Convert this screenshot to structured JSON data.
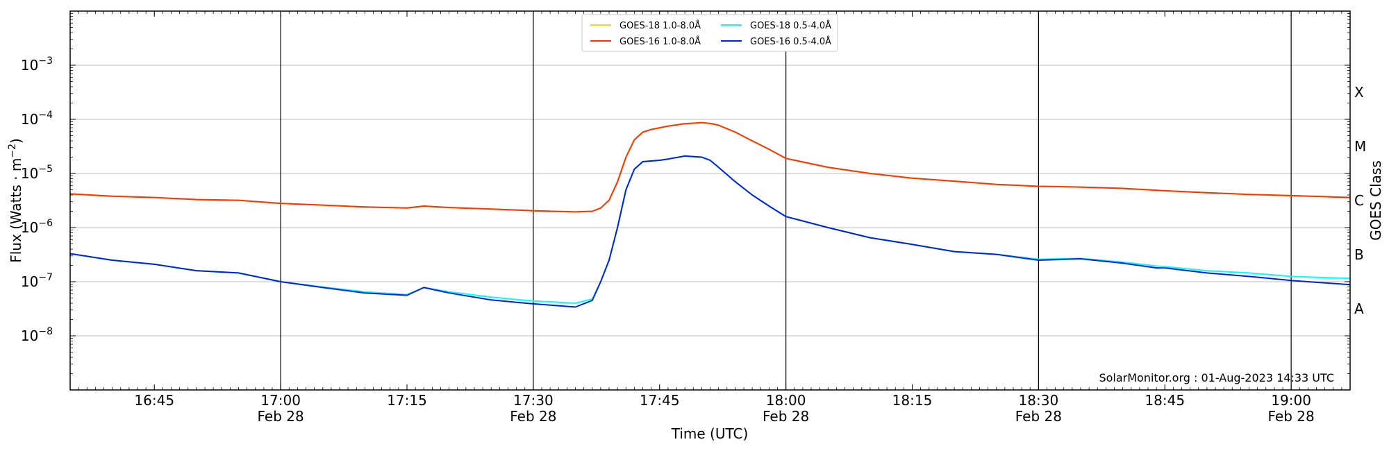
{
  "chart_data": {
    "type": "line",
    "xlabel": "Time (UTC)",
    "ylabel": "Flux (Watts · m⁻²)",
    "right_axis_label": "GOES Class",
    "credit": "SolarMonitor.org : 01-Aug-2023 14:33 UTC",
    "xlim": [
      "16:35",
      "19:07"
    ],
    "ylim": [
      1e-09,
      0.01
    ],
    "y_scale": "log",
    "grid": "horizontal at decades, vertical at half-hours",
    "legend_placement": "top-center",
    "x_ticks": [
      {
        "time": "16:45",
        "label": "16:45",
        "date": ""
      },
      {
        "time": "17:00",
        "label": "17:00",
        "date": "Feb 28"
      },
      {
        "time": "17:15",
        "label": "17:15",
        "date": ""
      },
      {
        "time": "17:30",
        "label": "17:30",
        "date": "Feb 28"
      },
      {
        "time": "17:45",
        "label": "17:45",
        "date": ""
      },
      {
        "time": "18:00",
        "label": "18:00",
        "date": "Feb 28"
      },
      {
        "time": "18:15",
        "label": "18:15",
        "date": ""
      },
      {
        "time": "18:30",
        "label": "18:30",
        "date": "Feb 28"
      },
      {
        "time": "18:45",
        "label": "18:45",
        "date": ""
      },
      {
        "time": "19:00",
        "label": "19:00",
        "date": "Feb 28"
      }
    ],
    "y_ticks": [
      {
        "exp": -3,
        "label": "10",
        "sup": "−3"
      },
      {
        "exp": -4,
        "label": "10",
        "sup": "−4"
      },
      {
        "exp": -5,
        "label": "10",
        "sup": "−5"
      },
      {
        "exp": -6,
        "label": "10",
        "sup": "−6"
      },
      {
        "exp": -7,
        "label": "10",
        "sup": "−7"
      },
      {
        "exp": -8,
        "label": "10",
        "sup": "−8"
      }
    ],
    "goes_classes": [
      {
        "label": "X",
        "flux": 0.0001
      },
      {
        "label": "M",
        "flux": 1e-05
      },
      {
        "label": "C",
        "flux": 1e-06
      },
      {
        "label": "B",
        "flux": 1e-07
      },
      {
        "label": "A",
        "flux": 1e-08
      }
    ],
    "series": [
      {
        "name": "GOES-18 1.0-8.0Å",
        "color": "#ffd700",
        "x": [
          "16:35",
          "16:40",
          "16:45",
          "16:50",
          "16:55",
          "17:00",
          "17:05",
          "17:10",
          "17:15",
          "17:17",
          "17:20",
          "17:25",
          "17:30",
          "17:35",
          "17:37",
          "17:38",
          "17:39",
          "17:40",
          "17:41",
          "17:42",
          "17:43",
          "17:44",
          "17:45",
          "17:46",
          "17:48",
          "17:50",
          "17:51",
          "17:52",
          "17:54",
          "17:56",
          "17:58",
          "18:00",
          "18:05",
          "18:10",
          "18:15",
          "18:20",
          "18:25",
          "18:30",
          "18:35",
          "18:40",
          "18:44",
          "18:45",
          "18:50",
          "18:55",
          "19:00",
          "19:07"
        ],
        "y": [
          4.2e-06,
          3.8e-06,
          3.6e-06,
          3.3e-06,
          3.2e-06,
          2.8e-06,
          2.6e-06,
          2.4e-06,
          2.3e-06,
          2.5e-06,
          2.35e-06,
          2.2e-06,
          2.05e-06,
          1.95e-06,
          2e-06,
          2.3e-06,
          3.2e-06,
          7e-06,
          2e-05,
          4.2e-05,
          5.8e-05,
          6.5e-05,
          7e-05,
          7.5e-05,
          8.3e-05,
          8.7e-05,
          8.4e-05,
          7.8e-05,
          5.8e-05,
          4e-05,
          2.8e-05,
          1.9e-05,
          1.3e-05,
          1e-05,
          8.2e-06,
          7.2e-06,
          6.3e-06,
          5.8e-06,
          5.6e-06,
          5.3e-06,
          4.9e-06,
          4.8e-06,
          4.4e-06,
          4.1e-06,
          3.9e-06,
          3.6e-06
        ]
      },
      {
        "name": "GOES-18 0.5-4.0Å",
        "color": "#00ffff",
        "x": [
          "16:35",
          "16:40",
          "16:45",
          "16:50",
          "16:55",
          "17:00",
          "17:05",
          "17:10",
          "17:15",
          "17:17",
          "17:20",
          "17:25",
          "17:30",
          "17:35",
          "17:37",
          "17:38",
          "17:39",
          "17:40",
          "17:41",
          "17:42",
          "17:43",
          "17:44",
          "17:45",
          "17:46",
          "17:48",
          "17:50",
          "17:51",
          "17:52",
          "17:54",
          "17:56",
          "17:58",
          "18:00",
          "18:05",
          "18:10",
          "18:15",
          "18:20",
          "18:25",
          "18:30",
          "18:35",
          "18:40",
          "18:44",
          "18:45",
          "18:50",
          "18:55",
          "19:00",
          "19:07"
        ],
        "y": [
          3.3e-07,
          2.5e-07,
          2.1e-07,
          1.6e-07,
          1.45e-07,
          1e-07,
          8e-08,
          6.5e-08,
          5.8e-08,
          7.8e-08,
          6.5e-08,
          5.2e-08,
          4.4e-08,
          4e-08,
          4.8e-08,
          1e-07,
          2.5e-07,
          1e-06,
          5e-06,
          1.2e-05,
          1.65e-05,
          1.7e-05,
          1.75e-05,
          1.85e-05,
          2.1e-05,
          2e-05,
          1.75e-05,
          1.3e-05,
          7e-06,
          4e-06,
          2.5e-06,
          1.6e-06,
          1e-06,
          6.5e-07,
          4.9e-07,
          3.6e-07,
          3.2e-07,
          2.6e-07,
          2.7e-07,
          2.3e-07,
          1.95e-07,
          1.9e-07,
          1.6e-07,
          1.45e-07,
          1.25e-07,
          1.15e-07
        ]
      },
      {
        "name": "GOES-16 1.0-8.0Å",
        "color": "#ff3300",
        "x": [
          "16:35",
          "16:40",
          "16:45",
          "16:50",
          "16:55",
          "17:00",
          "17:05",
          "17:10",
          "17:15",
          "17:17",
          "17:20",
          "17:25",
          "17:30",
          "17:35",
          "17:37",
          "17:38",
          "17:39",
          "17:40",
          "17:41",
          "17:42",
          "17:43",
          "17:44",
          "17:45",
          "17:46",
          "17:48",
          "17:50",
          "17:51",
          "17:52",
          "17:54",
          "17:56",
          "17:58",
          "18:00",
          "18:05",
          "18:10",
          "18:15",
          "18:20",
          "18:25",
          "18:30",
          "18:35",
          "18:40",
          "18:44",
          "18:45",
          "18:50",
          "18:55",
          "19:00",
          "19:07"
        ],
        "y": [
          4.2e-06,
          3.8e-06,
          3.6e-06,
          3.3e-06,
          3.2e-06,
          2.8e-06,
          2.6e-06,
          2.4e-06,
          2.3e-06,
          2.5e-06,
          2.35e-06,
          2.2e-06,
          2.05e-06,
          1.95e-06,
          2e-06,
          2.3e-06,
          3.2e-06,
          7e-06,
          2e-05,
          4.2e-05,
          5.8e-05,
          6.5e-05,
          7e-05,
          7.5e-05,
          8.3e-05,
          8.7e-05,
          8.4e-05,
          7.8e-05,
          5.8e-05,
          4e-05,
          2.8e-05,
          1.9e-05,
          1.3e-05,
          1e-05,
          8.2e-06,
          7.2e-06,
          6.3e-06,
          5.8e-06,
          5.6e-06,
          5.3e-06,
          4.9e-06,
          4.8e-06,
          4.4e-06,
          4.1e-06,
          3.9e-06,
          3.6e-06
        ]
      },
      {
        "name": "GOES-16 0.5-4.0Å",
        "color": "#0022dd",
        "x": [
          "16:35",
          "16:40",
          "16:45",
          "16:50",
          "16:55",
          "17:00",
          "17:05",
          "17:10",
          "17:15",
          "17:17",
          "17:20",
          "17:25",
          "17:30",
          "17:35",
          "17:37",
          "17:38",
          "17:39",
          "17:40",
          "17:41",
          "17:42",
          "17:43",
          "17:44",
          "17:45",
          "17:46",
          "17:48",
          "17:50",
          "17:51",
          "17:52",
          "17:54",
          "17:56",
          "17:58",
          "18:00",
          "18:05",
          "18:10",
          "18:15",
          "18:20",
          "18:25",
          "18:30",
          "18:35",
          "18:40",
          "18:44",
          "18:45",
          "18:50",
          "18:55",
          "19:00",
          "19:07"
        ],
        "y": [
          3.3e-07,
          2.5e-07,
          2.1e-07,
          1.6e-07,
          1.45e-07,
          1e-07,
          7.8e-08,
          6.2e-08,
          5.6e-08,
          7.8e-08,
          6.2e-08,
          4.6e-08,
          3.9e-08,
          3.4e-08,
          4.5e-08,
          1e-07,
          2.5e-07,
          1e-06,
          5e-06,
          1.2e-05,
          1.65e-05,
          1.7e-05,
          1.75e-05,
          1.85e-05,
          2.1e-05,
          2e-05,
          1.75e-05,
          1.3e-05,
          7e-06,
          4e-06,
          2.5e-06,
          1.6e-06,
          1e-06,
          6.5e-07,
          4.9e-07,
          3.6e-07,
          3.2e-07,
          2.5e-07,
          2.65e-07,
          2.2e-07,
          1.8e-07,
          1.8e-07,
          1.45e-07,
          1.25e-07,
          1.05e-07,
          8.8e-08
        ]
      }
    ],
    "legend_order": [
      0,
      1,
      2,
      3
    ]
  }
}
